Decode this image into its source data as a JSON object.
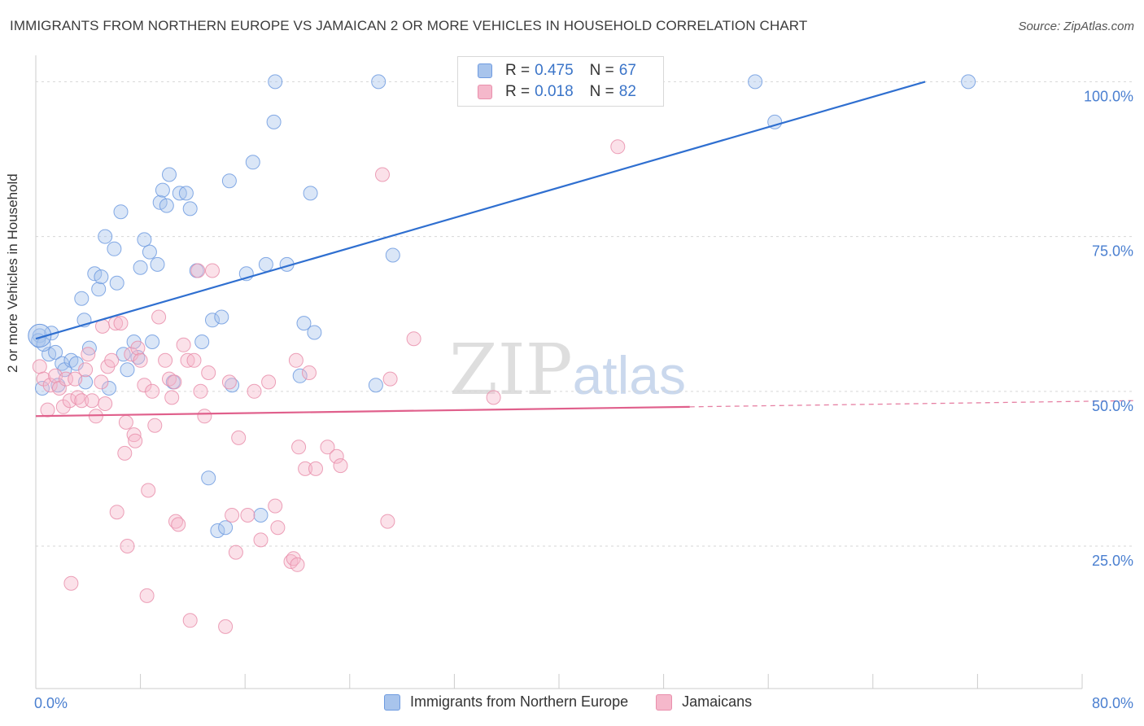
{
  "title": "IMMIGRANTS FROM NORTHERN EUROPE VS JAMAICAN 2 OR MORE VEHICLES IN HOUSEHOLD CORRELATION CHART",
  "source": "Source: ZipAtlas.com",
  "watermark": {
    "main": "ZIP",
    "sub": "atlas"
  },
  "colors": {
    "blue": "#a8c4ec",
    "blue_stroke": "#6f9be0",
    "blue_line": "#2f6fd0",
    "pink": "#f5b8cb",
    "pink_stroke": "#e98fac",
    "pink_line": "#e0608c",
    "tick": "#4a7fd0",
    "grid": "#d6d6d6"
  },
  "legend_top": [
    {
      "r_label": "R =",
      "r_value": "0.475",
      "n_label": "N =",
      "n_value": "67",
      "color": "blue"
    },
    {
      "r_label": "R =",
      "r_value": "0.018",
      "n_label": "N =",
      "n_value": "82",
      "color": "pink"
    }
  ],
  "chart_data": {
    "type": "scatter",
    "title": "IMMIGRANTS FROM NORTHERN EUROPE VS JAMAICAN 2 OR MORE VEHICLES IN HOUSEHOLD CORRELATION CHART",
    "xlabel": "",
    "ylabel": "2 or more Vehicles in Household",
    "xlim": [
      0,
      80
    ],
    "ylim": [
      2,
      104
    ],
    "x_tick_labels": [
      "0.0%",
      "80.0%"
    ],
    "y_ticks": [
      25,
      50,
      75,
      100
    ],
    "y_tick_labels": [
      "25.0%",
      "50.0%",
      "75.0%",
      "100.0%"
    ],
    "grid": true,
    "legend_position": "bottom",
    "series": [
      {
        "name": "Immigrants from Northern Europe",
        "color": "blue",
        "trend": {
          "x0": 0,
          "y0": 58.5,
          "x1": 68,
          "y1": 100,
          "dashed_to": null
        },
        "points": [
          [
            0.3,
            59.0
          ],
          [
            0.5,
            50.5
          ],
          [
            1.0,
            56.0
          ],
          [
            1.5,
            56.3
          ],
          [
            1.7,
            51.0
          ],
          [
            2.0,
            54.5
          ],
          [
            2.2,
            53.5
          ],
          [
            2.7,
            55.0
          ],
          [
            3.1,
            54.5
          ],
          [
            3.5,
            65.0
          ],
          [
            3.7,
            61.5
          ],
          [
            3.8,
            51.5
          ],
          [
            4.1,
            57.0
          ],
          [
            4.5,
            69.0
          ],
          [
            4.8,
            66.5
          ],
          [
            5.0,
            68.5
          ],
          [
            5.3,
            75.0
          ],
          [
            5.6,
            50.5
          ],
          [
            6.0,
            73.0
          ],
          [
            6.2,
            67.5
          ],
          [
            6.5,
            79.0
          ],
          [
            6.7,
            56.0
          ],
          [
            7.0,
            53.5
          ],
          [
            7.5,
            58.0
          ],
          [
            7.8,
            55.5
          ],
          [
            8.0,
            70.0
          ],
          [
            8.3,
            74.5
          ],
          [
            8.7,
            72.5
          ],
          [
            8.9,
            58.0
          ],
          [
            9.3,
            70.5
          ],
          [
            9.5,
            80.5
          ],
          [
            9.7,
            82.5
          ],
          [
            10.0,
            80.0
          ],
          [
            10.2,
            85.0
          ],
          [
            10.5,
            51.5
          ],
          [
            11.0,
            82.0
          ],
          [
            11.5,
            82.0
          ],
          [
            11.8,
            79.5
          ],
          [
            12.3,
            69.5
          ],
          [
            12.7,
            58.0
          ],
          [
            13.2,
            36.0
          ],
          [
            13.5,
            61.5
          ],
          [
            13.9,
            27.5
          ],
          [
            14.2,
            62.0
          ],
          [
            14.5,
            28.0
          ],
          [
            14.8,
            84.0
          ],
          [
            15.0,
            51.0
          ],
          [
            16.1,
            69.0
          ],
          [
            16.6,
            87.0
          ],
          [
            17.2,
            30.0
          ],
          [
            17.6,
            70.5
          ],
          [
            18.2,
            93.5
          ],
          [
            18.3,
            100.0
          ],
          [
            19.2,
            70.5
          ],
          [
            20.2,
            52.5
          ],
          [
            20.5,
            61.0
          ],
          [
            21.0,
            82.0
          ],
          [
            21.3,
            59.5
          ],
          [
            26.0,
            51.0
          ],
          [
            26.2,
            100.0
          ],
          [
            27.3,
            72.0
          ],
          [
            55.0,
            100.0
          ],
          [
            56.5,
            93.5
          ],
          [
            71.3,
            100.0
          ],
          [
            0.2,
            58.2
          ],
          [
            0.6,
            57.6
          ],
          [
            1.2,
            59.4
          ]
        ]
      },
      {
        "name": "Jamaicans",
        "color": "pink",
        "trend": {
          "x0": 0,
          "y0": 46.0,
          "x1": 50,
          "y1": 47.5,
          "dashed_to": {
            "x": 80,
            "y": 48.5
          }
        },
        "points": [
          [
            0.3,
            54.0
          ],
          [
            0.6,
            52.0
          ],
          [
            0.9,
            47.0
          ],
          [
            1.1,
            51.0
          ],
          [
            1.5,
            52.5
          ],
          [
            1.8,
            50.5
          ],
          [
            2.1,
            47.5
          ],
          [
            2.3,
            52.0
          ],
          [
            2.6,
            48.5
          ],
          [
            2.7,
            19.0
          ],
          [
            3.0,
            52.0
          ],
          [
            3.2,
            49.0
          ],
          [
            3.5,
            48.5
          ],
          [
            3.8,
            53.5
          ],
          [
            4.0,
            56.0
          ],
          [
            4.3,
            48.5
          ],
          [
            4.6,
            46.0
          ],
          [
            5.0,
            51.5
          ],
          [
            5.1,
            60.5
          ],
          [
            5.3,
            48.0
          ],
          [
            5.5,
            54.0
          ],
          [
            5.8,
            55.0
          ],
          [
            6.1,
            61.0
          ],
          [
            6.2,
            30.5
          ],
          [
            6.5,
            61.0
          ],
          [
            6.8,
            40.0
          ],
          [
            6.9,
            45.0
          ],
          [
            7.0,
            25.0
          ],
          [
            7.3,
            56.0
          ],
          [
            7.5,
            43.0
          ],
          [
            7.6,
            42.0
          ],
          [
            7.8,
            57.0
          ],
          [
            8.0,
            55.0
          ],
          [
            8.3,
            51.0
          ],
          [
            8.5,
            17.0
          ],
          [
            8.6,
            34.0
          ],
          [
            8.9,
            50.0
          ],
          [
            9.1,
            44.5
          ],
          [
            9.4,
            62.0
          ],
          [
            9.9,
            55.0
          ],
          [
            10.2,
            52.0
          ],
          [
            10.4,
            49.0
          ],
          [
            10.6,
            51.5
          ],
          [
            10.7,
            29.0
          ],
          [
            10.9,
            28.5
          ],
          [
            11.3,
            57.5
          ],
          [
            11.6,
            55.0
          ],
          [
            11.8,
            13.0
          ],
          [
            12.1,
            55.0
          ],
          [
            12.4,
            69.5
          ],
          [
            12.6,
            50.0
          ],
          [
            12.9,
            46.0
          ],
          [
            13.2,
            53.0
          ],
          [
            13.5,
            69.5
          ],
          [
            14.8,
            51.5
          ],
          [
            14.5,
            12.0
          ],
          [
            15.0,
            30.0
          ],
          [
            15.3,
            24.0
          ],
          [
            15.5,
            42.5
          ],
          [
            16.2,
            30.0
          ],
          [
            16.7,
            50.0
          ],
          [
            17.2,
            26.0
          ],
          [
            17.8,
            51.5
          ],
          [
            18.3,
            31.5
          ],
          [
            18.5,
            28.0
          ],
          [
            19.5,
            22.5
          ],
          [
            19.7,
            23.0
          ],
          [
            19.9,
            55.0
          ],
          [
            20.1,
            41.0
          ],
          [
            20.6,
            37.5
          ],
          [
            20.9,
            53.0
          ],
          [
            21.4,
            37.5
          ],
          [
            22.3,
            41.0
          ],
          [
            23.0,
            39.5
          ],
          [
            23.3,
            38.0
          ],
          [
            26.5,
            85.0
          ],
          [
            26.9,
            29.0
          ],
          [
            27.1,
            52.0
          ],
          [
            28.9,
            58.5
          ],
          [
            35.0,
            49.0
          ],
          [
            44.5,
            89.5
          ],
          [
            20.0,
            22.0
          ]
        ]
      }
    ]
  }
}
